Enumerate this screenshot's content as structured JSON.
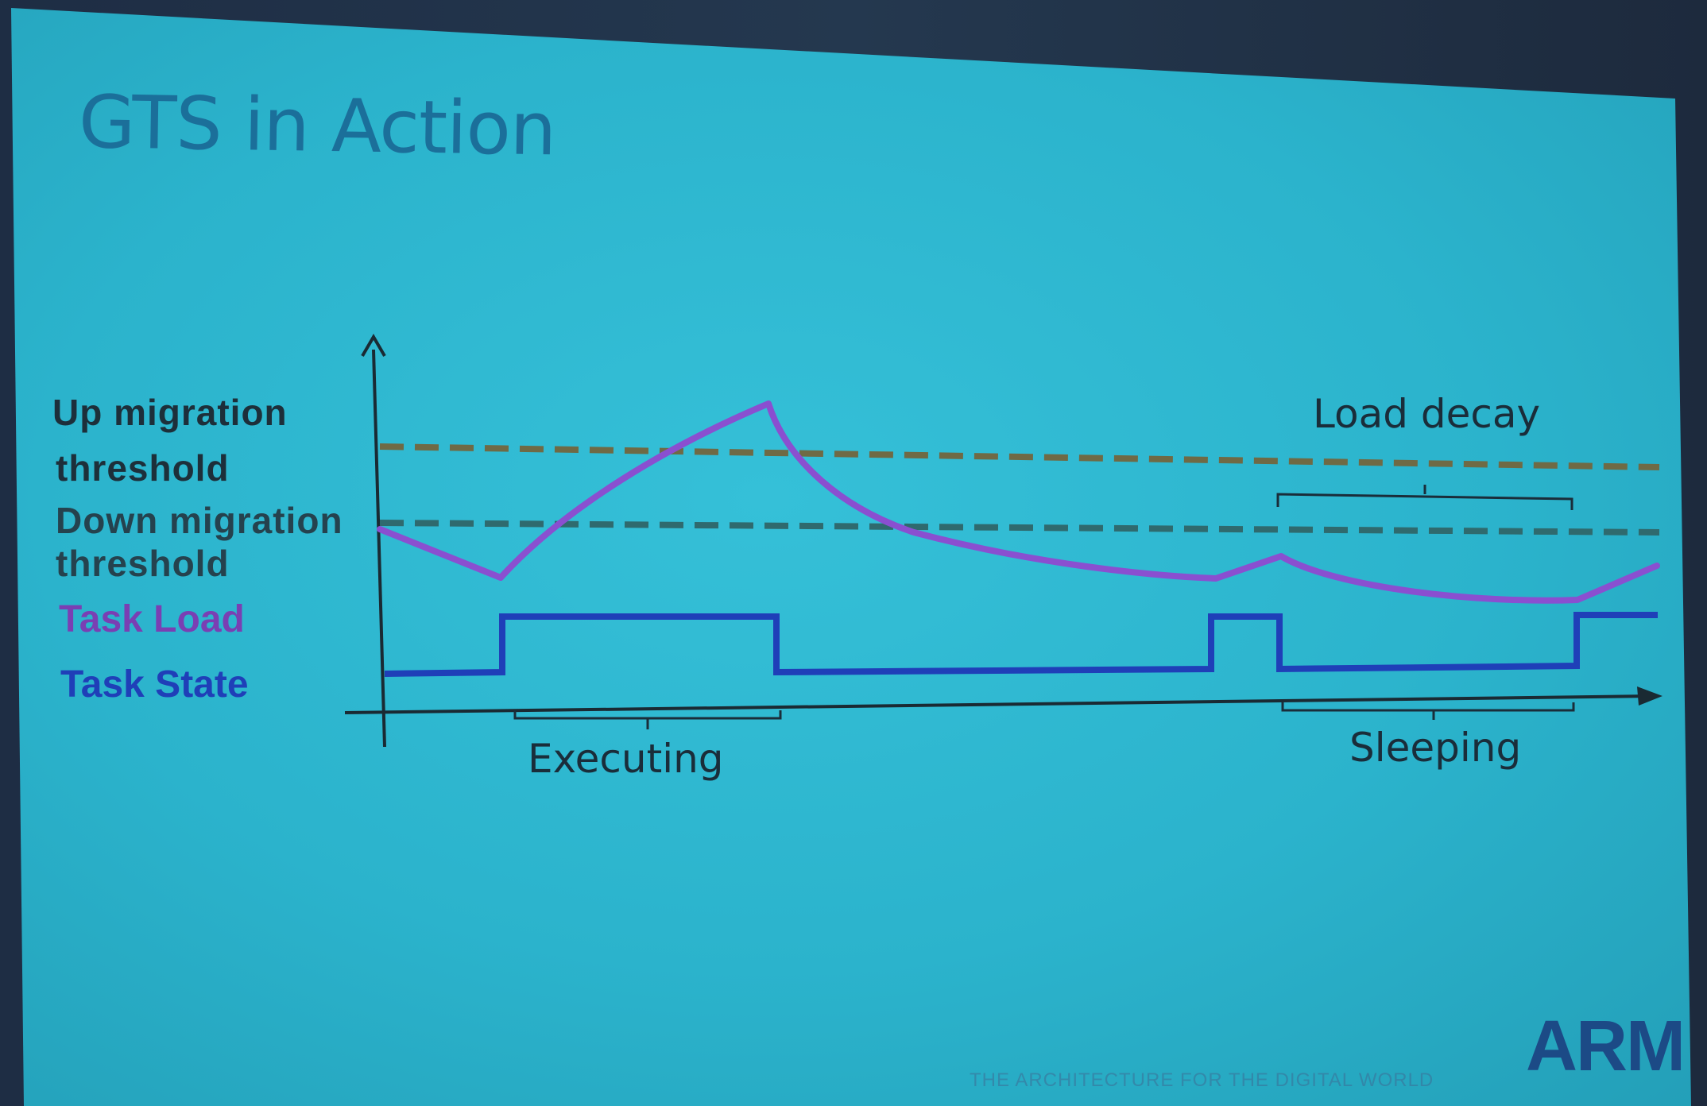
{
  "slide": {
    "title": "GTS in Action",
    "logo": "ARM",
    "tagline": "THE ARCHITECTURE FOR THE DIGITAL WORLD"
  },
  "labels": {
    "up_line1": "Up migration",
    "up_line2": "threshold",
    "down_line1": "Down migration",
    "down_line2": "threshold",
    "task_load": "Task Load",
    "task_state": "Task State"
  },
  "annotations": {
    "executing": "Executing",
    "sleeping": "Sleeping",
    "load_decay": "Load decay"
  },
  "colors": {
    "background": "#2bb3cc",
    "title": "#1b6f9a",
    "task_load": "#8a4fd0",
    "task_state": "#1f3fb8",
    "threshold_up": "#6f6a45",
    "threshold_down": "#2f6a6e",
    "axis": "#1a2a33"
  }
}
